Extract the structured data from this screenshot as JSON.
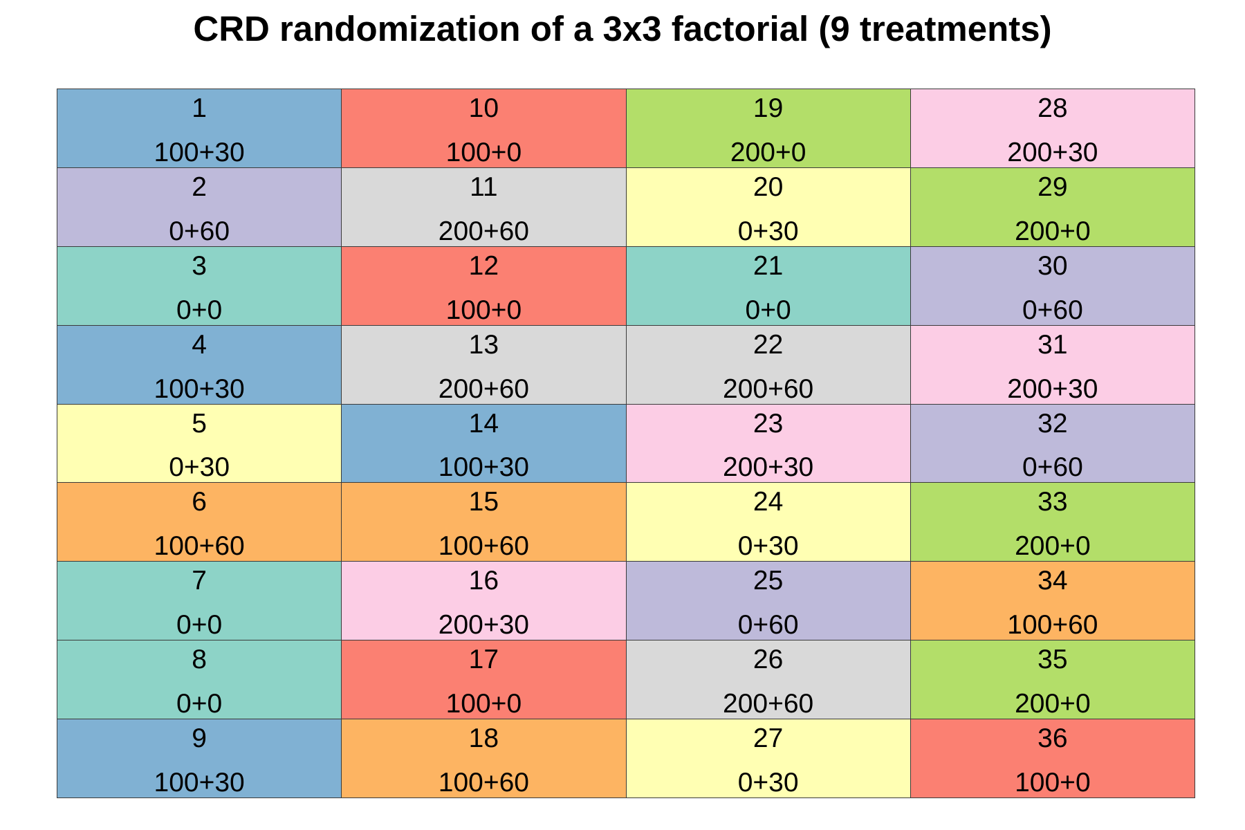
{
  "title": "CRD randomization of a 3x3 factorial (9 treatments)",
  "treatment_colors": {
    "0+0": "#8dd3c7",
    "0+30": "#ffffb3",
    "0+60": "#bebada",
    "100+0": "#fb8072",
    "100+30": "#80b1d3",
    "100+60": "#fdb462",
    "200+0": "#b3de69",
    "200+30": "#fccde5",
    "200+60": "#d9d9d9"
  },
  "plots": [
    {
      "id": "1",
      "treatment": "100+30"
    },
    {
      "id": "2",
      "treatment": "0+60"
    },
    {
      "id": "3",
      "treatment": "0+0"
    },
    {
      "id": "4",
      "treatment": "100+30"
    },
    {
      "id": "5",
      "treatment": "0+30"
    },
    {
      "id": "6",
      "treatment": "100+60"
    },
    {
      "id": "7",
      "treatment": "0+0"
    },
    {
      "id": "8",
      "treatment": "0+0"
    },
    {
      "id": "9",
      "treatment": "100+30"
    },
    {
      "id": "10",
      "treatment": "100+0"
    },
    {
      "id": "11",
      "treatment": "200+60"
    },
    {
      "id": "12",
      "treatment": "100+0"
    },
    {
      "id": "13",
      "treatment": "200+60"
    },
    {
      "id": "14",
      "treatment": "100+30"
    },
    {
      "id": "15",
      "treatment": "100+60"
    },
    {
      "id": "16",
      "treatment": "200+30"
    },
    {
      "id": "17",
      "treatment": "100+0"
    },
    {
      "id": "18",
      "treatment": "100+60"
    },
    {
      "id": "19",
      "treatment": "200+0"
    },
    {
      "id": "20",
      "treatment": "0+30"
    },
    {
      "id": "21",
      "treatment": "0+0"
    },
    {
      "id": "22",
      "treatment": "200+60"
    },
    {
      "id": "23",
      "treatment": "200+30"
    },
    {
      "id": "24",
      "treatment": "0+30"
    },
    {
      "id": "25",
      "treatment": "0+60"
    },
    {
      "id": "26",
      "treatment": "200+60"
    },
    {
      "id": "27",
      "treatment": "0+30"
    },
    {
      "id": "28",
      "treatment": "200+30"
    },
    {
      "id": "29",
      "treatment": "200+0"
    },
    {
      "id": "30",
      "treatment": "0+60"
    },
    {
      "id": "31",
      "treatment": "200+30"
    },
    {
      "id": "32",
      "treatment": "0+60"
    },
    {
      "id": "33",
      "treatment": "200+0"
    },
    {
      "id": "34",
      "treatment": "100+60"
    },
    {
      "id": "35",
      "treatment": "200+0"
    },
    {
      "id": "36",
      "treatment": "100+0"
    }
  ]
}
